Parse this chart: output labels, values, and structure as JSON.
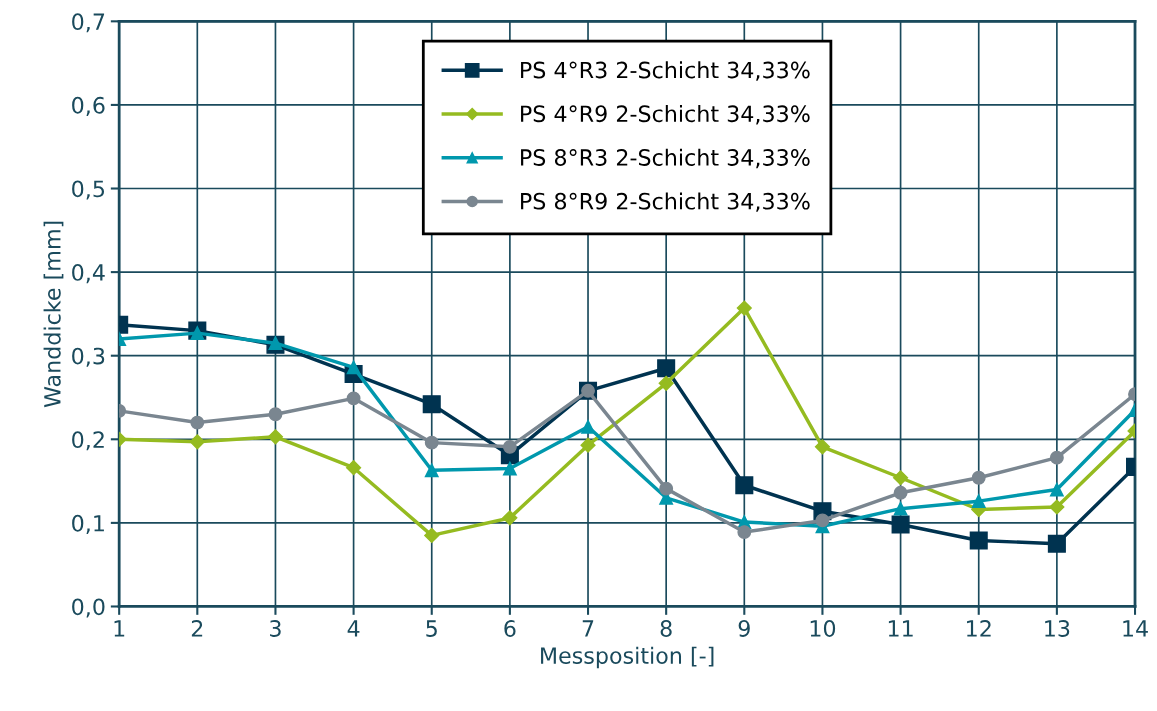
{
  "chart_data": {
    "type": "line",
    "xlabel": "Messposition [-]",
    "ylabel": "Wanddicke [mm]",
    "x": [
      1,
      2,
      3,
      4,
      5,
      6,
      7,
      8,
      9,
      10,
      11,
      12,
      13,
      14
    ],
    "xlim": [
      1,
      14
    ],
    "xticks": [
      1,
      2,
      3,
      4,
      5,
      6,
      7,
      8,
      9,
      10,
      11,
      12,
      13,
      14
    ],
    "ylim": [
      0,
      0.7
    ],
    "yticks": [
      {
        "value": 0,
        "label": "0,0"
      },
      {
        "value": 0.1,
        "label": "0,1"
      },
      {
        "value": 0.2,
        "label": "0,2"
      },
      {
        "value": 0.3,
        "label": "0,3"
      },
      {
        "value": 0.4,
        "label": "0,4"
      },
      {
        "value": 0.5,
        "label": "0,5"
      },
      {
        "value": 0.6,
        "label": "0,6"
      },
      {
        "value": 0.7,
        "label": "0,7"
      }
    ],
    "grid": true,
    "legend": "top",
    "line_style": "solid",
    "series": [
      {
        "name": "PS 4°R3 2-Schicht 34,33%",
        "color": "#003350",
        "marker": "square",
        "values": [
          0.337,
          0.33,
          0.313,
          0.278,
          0.242,
          0.181,
          0.258,
          0.285,
          0.145,
          0.114,
          0.098,
          0.079,
          0.075,
          0.167
        ]
      },
      {
        "name": "PS 4°R9 2-Schicht 34,33%",
        "color": "#95bb20",
        "marker": "diamond",
        "values": [
          0.2,
          0.197,
          0.203,
          0.166,
          0.085,
          0.106,
          0.193,
          0.267,
          0.357,
          0.191,
          0.154,
          0.116,
          0.119,
          0.21
        ]
      },
      {
        "name": "PS 8°R3 2-Schicht 34,33%",
        "color": "#0098ad",
        "marker": "triangle",
        "values": [
          0.32,
          0.327,
          0.315,
          0.286,
          0.163,
          0.165,
          0.215,
          0.13,
          0.101,
          0.096,
          0.117,
          0.126,
          0.14,
          0.235
        ]
      },
      {
        "name": "PS 8°R9 2-Schicht 34,33%",
        "color": "#7a8690",
        "marker": "circle",
        "values": [
          0.234,
          0.22,
          0.23,
          0.249,
          0.196,
          0.191,
          0.258,
          0.141,
          0.089,
          0.103,
          0.136,
          0.154,
          0.178,
          0.254
        ]
      }
    ]
  }
}
